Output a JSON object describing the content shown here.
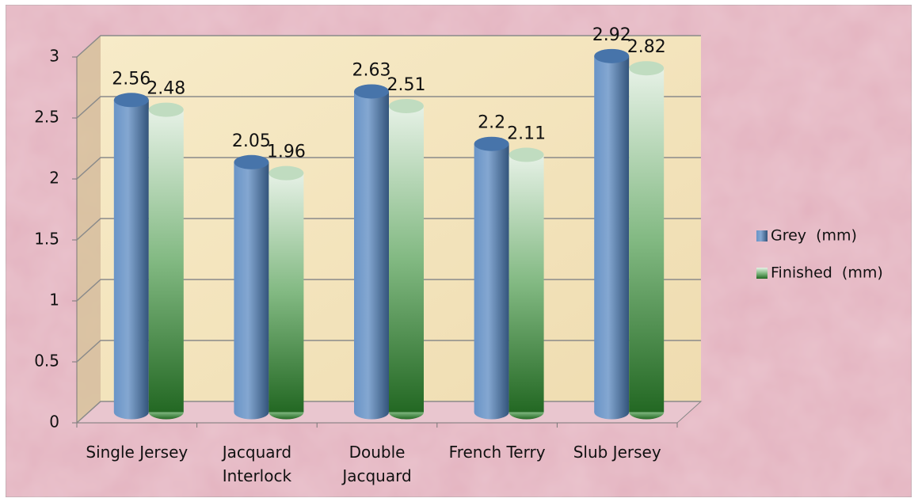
{
  "chart_data": {
    "type": "bar3d",
    "categories": [
      "Single Jersey",
      "Jacquard\nInterlock",
      "Double\nJacquard",
      "French Terry",
      "Slub Jersey"
    ],
    "series": [
      {
        "name": "Grey  (mm)",
        "color": "#4f81bd",
        "values": [
          2.56,
          2.05,
          2.63,
          2.2,
          2.92
        ]
      },
      {
        "name": "Finished  (mm)",
        "color": "#2e8b2e",
        "values": [
          2.48,
          1.96,
          2.51,
          2.11,
          2.82
        ]
      }
    ],
    "ylim": [
      0,
      3
    ],
    "yticks": [
      0,
      0.5,
      1,
      1.5,
      2,
      2.5,
      3
    ],
    "grid": true,
    "legend": "right"
  }
}
